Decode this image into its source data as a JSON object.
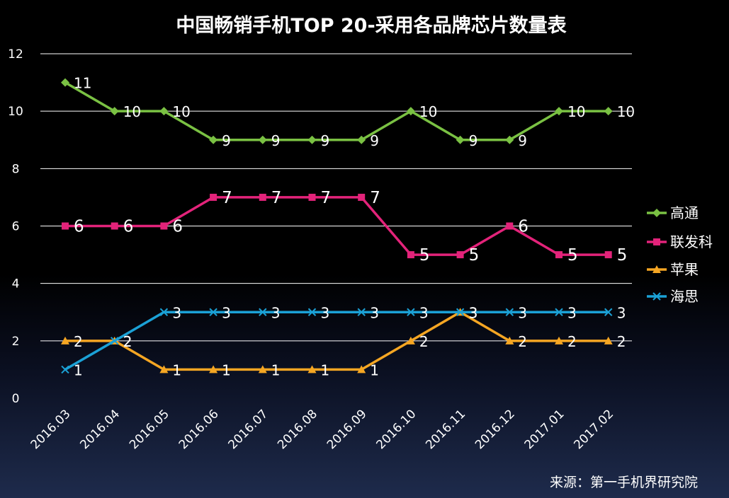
{
  "chart_data": {
    "type": "line",
    "title": "中国畅销手机TOP 20-采用各品牌芯片数量表",
    "categories": [
      "2016.03",
      "2016.04",
      "2016.05",
      "2016.06",
      "2016.07",
      "2016.08",
      "2016.09",
      "2016.10",
      "2016.11",
      "2016.12",
      "2017.01",
      "2017.02"
    ],
    "yticks": [
      "0",
      "2",
      "4",
      "6",
      "8",
      "10",
      "12"
    ],
    "ylim": [
      0,
      12
    ],
    "grid": true,
    "legend_position": "right",
    "series": [
      {
        "name": "高通",
        "color": "#7ac143",
        "marker": "diamond",
        "values": [
          11,
          10,
          10,
          9,
          9,
          9,
          9,
          10,
          9,
          9,
          10,
          10
        ]
      },
      {
        "name": "联发科",
        "color": "#e3237a",
        "marker": "square",
        "values": [
          6,
          6,
          6,
          7,
          7,
          7,
          7,
          5,
          5,
          6,
          5,
          5
        ]
      },
      {
        "name": "苹果",
        "color": "#f5a623",
        "marker": "triangle",
        "values": [
          2,
          2,
          1,
          1,
          1,
          1,
          1,
          2,
          3,
          2,
          2,
          2
        ]
      },
      {
        "name": "海思",
        "color": "#1ba1d6",
        "marker": "x",
        "values": [
          1,
          2,
          3,
          3,
          3,
          3,
          3,
          3,
          3,
          3,
          3,
          3
        ]
      }
    ]
  },
  "source": "来源：第一手机界研究院"
}
